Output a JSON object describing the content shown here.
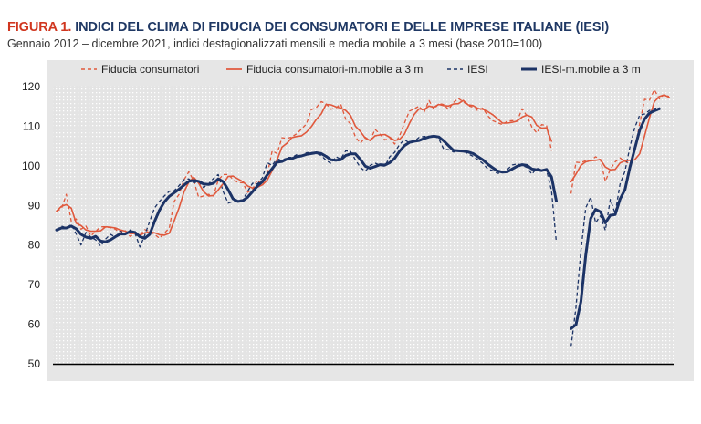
{
  "header": {
    "fig_label": "FIGURA 1.",
    "title": "INDICI DEL CLIMA DI FIDUCIA DEI CONSUMATORI E DELLE IMPRESE ITALIANE (IESI)",
    "subtitle": "Gennaio 2012 – dicembre 2021, indici destagionalizzati mensili e media mobile a 3 mesi (base 2010=100)"
  },
  "colors": {
    "consumers": "#e0583c",
    "iesi": "#1c3366",
    "title_blue": "#1f3864",
    "title_red": "#d0361f"
  },
  "chart_data": {
    "type": "line",
    "x_start": "2012-01",
    "x_end": "2021-12",
    "xlabel": "",
    "ylabel": "",
    "ylim": [
      50,
      120
    ],
    "yticks": [
      50,
      60,
      70,
      80,
      90,
      100,
      110,
      120
    ],
    "grid": true,
    "legend_position": "top",
    "series": [
      {
        "name": "Fiducia consumatori",
        "style": "dashed",
        "color": "#e0583c",
        "values": [
          88.6,
          89.2,
          92.8,
          86.0,
          86.6,
          84.0,
          84.8,
          82.3,
          83.5,
          84.6,
          84.6,
          84.4,
          84.0,
          83.0,
          83.6,
          82.2,
          82.8,
          82.5,
          83.9,
          83.4,
          82.7,
          81.7,
          83.0,
          84.3,
          91.0,
          92.8,
          96.5,
          98.5,
          96.2,
          92.0,
          92.4,
          92.8,
          92.4,
          96.4,
          97.8,
          97.8,
          96.6,
          95.8,
          95.7,
          93.3,
          94.1,
          96.5,
          95.0,
          97.7,
          103.8,
          103.1,
          107.1,
          106.9,
          107.3,
          108.1,
          109.3,
          110.6,
          114.2,
          114.7,
          116.2,
          115.7,
          114.3,
          114.6,
          115.6,
          111.8,
          110.6,
          107.3,
          105.7,
          107.2,
          106.4,
          109.2,
          108.0,
          106.5,
          107.1,
          105.5,
          107.6,
          110.8,
          113.8,
          114.4,
          115.1,
          113.5,
          116.5,
          114.3,
          115.7,
          115.5,
          114.2,
          116.0,
          117.0,
          116.2,
          115.2,
          114.8,
          113.9,
          114.6,
          112.6,
          111.4,
          110.9,
          110.4,
          111.3,
          111.4,
          111.3,
          114.4,
          112.6,
          109.8,
          108.3,
          110.4,
          110.2,
          103.8,
          null,
          null,
          null,
          93.0,
          100.9,
          100.8,
          101.3,
          101.3,
          102.3,
          101.5,
          96.1,
          99.1,
          101.0,
          102.0,
          101.1,
          100.5,
          104.0,
          110.6,
          116.8,
          116.6,
          119.2,
          116.9,
          118.0,
          117.5
        ]
      },
      {
        "name": "Fiducia consumatori-m.mobile a 3 m",
        "style": "solid",
        "color": "#e0583c",
        "values": [
          88.6,
          89.8,
          90.2,
          89.3,
          85.5,
          84.9,
          83.8,
          83.5,
          83.5,
          83.6,
          84.6,
          84.5,
          84.3,
          83.8,
          83.5,
          82.9,
          82.9,
          82.5,
          83.1,
          83.3,
          83.1,
          82.6,
          82.5,
          83.0,
          86.1,
          89.4,
          93.4,
          95.9,
          97.1,
          95.6,
          93.5,
          92.4,
          92.5,
          93.9,
          95.5,
          97.3,
          97.4,
          96.7,
          96.0,
          94.9,
          94.4,
          94.6,
          95.2,
          96.4,
          98.8,
          101.5,
          104.7,
          105.7,
          107.1,
          107.4,
          107.6,
          108.5,
          109.9,
          111.7,
          113.1,
          115.5,
          115.4,
          114.9,
          114.6,
          114.0,
          112.7,
          110.0,
          108.7,
          107.0,
          106.4,
          107.6,
          107.8,
          107.9,
          107.2,
          106.4,
          106.7,
          108.0,
          110.7,
          113.0,
          114.4,
          114.2,
          115.1,
          114.8,
          115.5,
          115.2,
          115.1,
          115.6,
          115.7,
          116.5,
          115.4,
          115.2,
          114.5,
          114.3,
          113.7,
          112.9,
          111.9,
          110.8,
          110.8,
          111.0,
          111.3,
          112.3,
          112.8,
          112.3,
          110.2,
          109.5,
          109.6,
          106.2,
          null,
          null,
          null,
          96.0,
          97.9,
          100.1,
          101.0,
          101.3,
          101.4,
          101.6,
          99.7,
          99.0,
          99.1,
          100.7,
          101.3,
          101.4,
          101.5,
          103.0,
          107.6,
          112.1,
          116.2,
          117.5,
          117.9,
          117.3
        ]
      },
      {
        "name": "IESI",
        "style": "dashed",
        "color": "#1c3366",
        "values": [
          83.8,
          84.8,
          84.3,
          85.2,
          82.8,
          80.0,
          83.2,
          82.0,
          81.3,
          79.7,
          81.5,
          82.7,
          82.0,
          83.6,
          82.8,
          83.8,
          83.0,
          79.5,
          82.5,
          86.0,
          89.4,
          91.0,
          92.4,
          93.6,
          93.7,
          95.0,
          96.5,
          96.7,
          95.7,
          96.0,
          94.5,
          95.4,
          96.8,
          97.8,
          93.5,
          90.6,
          91.0,
          91.3,
          91.4,
          93.6,
          95.6,
          95.4,
          97.0,
          100.8,
          100.1,
          101.8,
          101.3,
          102.1,
          102.1,
          102.8,
          102.5,
          103.3,
          103.4,
          103.2,
          102.6,
          101.4,
          100.6,
          102.3,
          101.7,
          103.8,
          103.6,
          101.5,
          99.6,
          98.6,
          100.1,
          100.7,
          100.1,
          99.9,
          102.3,
          103.4,
          105.4,
          106.6,
          105.8,
          106.2,
          107.2,
          107.4,
          107.4,
          107.7,
          106.9,
          104.2,
          104.1,
          103.5,
          103.8,
          103.8,
          103.0,
          102.4,
          101.5,
          100.6,
          99.2,
          98.8,
          98.1,
          98.3,
          99.1,
          100.2,
          100.5,
          100.1,
          99.6,
          97.9,
          99.4,
          99.0,
          98.9,
          93.8,
          80.7,
          null,
          null,
          54.3,
          64.3,
          78.5,
          89.4,
          92.1,
          85.6,
          87.4,
          83.7,
          91.5,
          88.0,
          95.4,
          98.6,
          104.7,
          109.6,
          112.8,
          113.1,
          114.0,
          114.5,
          114.7
        ]
      },
      {
        "name": "IESI-m.mobile a 3 m",
        "style": "solid",
        "color": "#1c3366",
        "values": [
          83.8,
          84.3,
          84.3,
          84.8,
          84.1,
          82.7,
          82.0,
          81.7,
          82.2,
          81.0,
          80.8,
          81.3,
          82.1,
          82.8,
          82.8,
          83.4,
          83.2,
          82.1,
          81.7,
          82.7,
          86.0,
          88.8,
          90.9,
          92.3,
          93.2,
          94.1,
          95.1,
          96.1,
          96.3,
          96.1,
          95.4,
          95.3,
          95.6,
          96.7,
          96.0,
          94.0,
          91.7,
          91.0,
          91.2,
          92.1,
          93.5,
          94.9,
          96.0,
          97.7,
          99.3,
          100.9,
          101.1,
          101.7,
          101.8,
          102.3,
          102.5,
          102.9,
          103.1,
          103.3,
          103.1,
          102.4,
          101.5,
          101.4,
          101.5,
          102.6,
          103.0,
          103.0,
          101.6,
          99.9,
          99.4,
          99.8,
          100.3,
          100.2,
          100.8,
          101.9,
          103.7,
          105.1,
          105.9,
          106.2,
          106.4,
          106.9,
          107.3,
          107.5,
          107.3,
          106.3,
          105.1,
          103.9,
          103.8,
          103.7,
          103.5,
          103.1,
          102.3,
          101.5,
          100.4,
          99.5,
          98.7,
          98.4,
          98.5,
          99.2,
          99.9,
          100.3,
          100.1,
          99.2,
          99.0,
          98.8,
          99.1,
          97.2,
          91.1,
          null,
          null,
          58.9,
          59.9,
          65.7,
          77.4,
          86.7,
          89.0,
          88.4,
          85.6,
          87.5,
          87.7,
          91.6,
          94.0,
          99.6,
          104.3,
          109.0,
          111.8,
          113.3,
          113.9,
          114.4
        ]
      }
    ]
  }
}
